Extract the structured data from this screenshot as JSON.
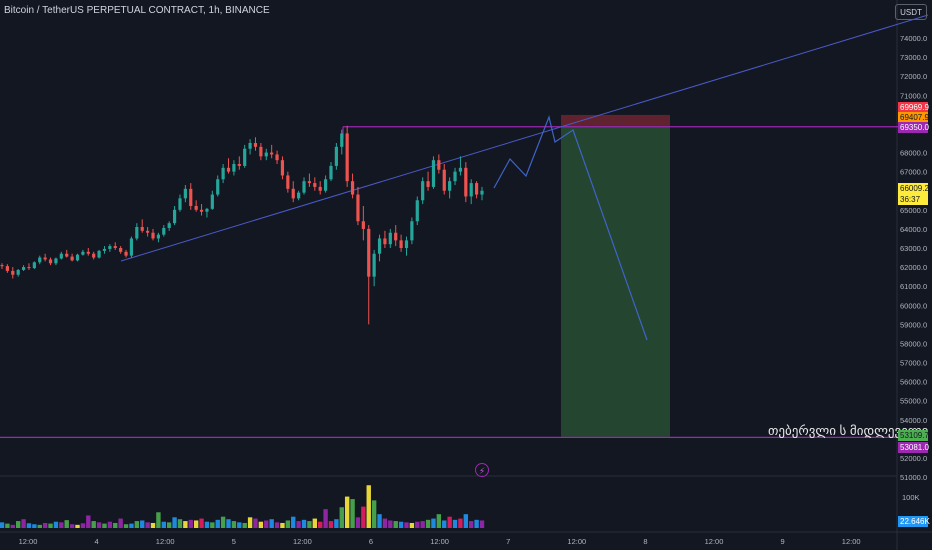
{
  "header": {
    "title": "Bitcoin / TetherUS PERPETUAL CONTRACT, 1h, BINANCE",
    "currency": "USDT"
  },
  "watermark": "თებერვლი ს მიდლეველი",
  "price_axis": [
    "74000.0",
    "73000.0",
    "72000.0",
    "71000.0",
    "68000.0",
    "67000.0",
    "65000.0",
    "64000.0",
    "63000.0",
    "62000.0",
    "61000.0",
    "60000.0",
    "59000.0",
    "58000.0",
    "57000.0",
    "56000.0",
    "55000.0",
    "54000.0",
    "52000.0",
    "51000.0"
  ],
  "price_tags": [
    {
      "label": "69969.9",
      "bg": "#f23645",
      "fg": "#ffffff"
    },
    {
      "label": "69407.9",
      "bg": "#ff9800",
      "fg": "#131722"
    },
    {
      "label": "69350.0",
      "bg": "#9c27b0",
      "fg": "#ffffff"
    },
    {
      "label": "66009.2",
      "bg": "#ffeb3b",
      "fg": "#131722"
    },
    {
      "label": "36:37",
      "bg": "#ffeb3b",
      "fg": "#131722"
    },
    {
      "label": "53109.7",
      "bg": "#4caf50",
      "fg": "#131722"
    },
    {
      "label": "53081.0",
      "bg": "#9c27b0",
      "fg": "#ffffff"
    }
  ],
  "volume_axis": {
    "label": "100K",
    "current": "22.646K",
    "current_bg": "#2196f3"
  },
  "time_axis": [
    "12:00",
    "4",
    "12:00",
    "5",
    "12:00",
    "6",
    "12:00",
    "7",
    "12:00",
    "8",
    "12:00",
    "9",
    "12:00"
  ],
  "colors": {
    "up": "#26a69a",
    "down": "#ef5350",
    "purple": "#9c27b0",
    "trend": "#4a5ac8",
    "stop": "#f23645",
    "target": "#4caf50"
  },
  "chart_data": {
    "type": "candlestick",
    "ylim": [
      51000,
      75500
    ],
    "candles": [
      [
        62100,
        62200,
        61900,
        62050
      ],
      [
        62050,
        62150,
        61700,
        61800
      ],
      [
        61800,
        62000,
        61400,
        61600
      ],
      [
        61600,
        61900,
        61500,
        61850
      ],
      [
        61850,
        62100,
        61800,
        62000
      ],
      [
        62000,
        62200,
        61850,
        61950
      ],
      [
        61950,
        62300,
        61900,
        62250
      ],
      [
        62250,
        62600,
        62150,
        62500
      ],
      [
        62500,
        62700,
        62300,
        62400
      ],
      [
        62400,
        62500,
        62100,
        62200
      ],
      [
        62200,
        62500,
        62100,
        62450
      ],
      [
        62450,
        62800,
        62400,
        62700
      ],
      [
        62700,
        62900,
        62500,
        62550
      ],
      [
        62550,
        62700,
        62300,
        62350
      ],
      [
        62350,
        62700,
        62300,
        62650
      ],
      [
        62650,
        62900,
        62600,
        62800
      ],
      [
        62800,
        63000,
        62600,
        62700
      ],
      [
        62700,
        62800,
        62400,
        62500
      ],
      [
        62500,
        62900,
        62450,
        62850
      ],
      [
        62850,
        63100,
        62700,
        62950
      ],
      [
        62950,
        63200,
        62800,
        63100
      ],
      [
        63100,
        63300,
        62900,
        63000
      ],
      [
        63000,
        63100,
        62700,
        62800
      ],
      [
        62800,
        62900,
        62500,
        62600
      ],
      [
        62600,
        63600,
        62500,
        63500
      ],
      [
        63500,
        64300,
        63400,
        64100
      ],
      [
        64100,
        64500,
        63800,
        63900
      ],
      [
        63900,
        64100,
        63600,
        63800
      ],
      [
        63800,
        64000,
        63400,
        63500
      ],
      [
        63500,
        63800,
        63300,
        63700
      ],
      [
        63700,
        64200,
        63600,
        64050
      ],
      [
        64050,
        64400,
        63900,
        64300
      ],
      [
        64300,
        65200,
        64200,
        65000
      ],
      [
        65000,
        65800,
        64900,
        65600
      ],
      [
        65600,
        66300,
        65400,
        66100
      ],
      [
        66100,
        66400,
        65000,
        65200
      ],
      [
        65200,
        65500,
        64900,
        65000
      ],
      [
        65000,
        65300,
        64700,
        64900
      ],
      [
        64900,
        65100,
        64600,
        65050
      ],
      [
        65050,
        66000,
        65000,
        65800
      ],
      [
        65800,
        66800,
        65700,
        66600
      ],
      [
        66600,
        67400,
        66400,
        67200
      ],
      [
        67200,
        67700,
        66900,
        67000
      ],
      [
        67000,
        67600,
        66800,
        67400
      ],
      [
        67400,
        67800,
        67100,
        67300
      ],
      [
        67300,
        68400,
        67200,
        68200
      ],
      [
        68200,
        68700,
        67900,
        68500
      ],
      [
        68500,
        68800,
        68100,
        68300
      ],
      [
        68300,
        68500,
        67600,
        67800
      ],
      [
        67800,
        68200,
        67600,
        68000
      ],
      [
        68000,
        68400,
        67700,
        67900
      ],
      [
        67900,
        68100,
        67400,
        67600
      ],
      [
        67600,
        67800,
        66600,
        66800
      ],
      [
        66800,
        67000,
        65900,
        66100
      ],
      [
        66100,
        66500,
        65400,
        65600
      ],
      [
        65600,
        66000,
        65500,
        65900
      ],
      [
        65900,
        66700,
        65800,
        66500
      ],
      [
        66500,
        66900,
        66200,
        66400
      ],
      [
        66400,
        66700,
        66000,
        66200
      ],
      [
        66200,
        66500,
        65800,
        66000
      ],
      [
        66000,
        66800,
        65900,
        66600
      ],
      [
        66600,
        67500,
        66500,
        67300
      ],
      [
        67300,
        68500,
        67100,
        68300
      ],
      [
        68300,
        69200,
        67900,
        69000
      ],
      [
        69000,
        69400,
        66200,
        66500
      ],
      [
        66500,
        66900,
        65600,
        65800
      ],
      [
        65800,
        66200,
        64200,
        64400
      ],
      [
        64400,
        65200,
        63400,
        64000
      ],
      [
        64000,
        64200,
        59000,
        61500
      ],
      [
        61500,
        62900,
        61000,
        62700
      ],
      [
        62700,
        63700,
        62300,
        63500
      ],
      [
        63500,
        63900,
        63000,
        63200
      ],
      [
        63200,
        64000,
        63000,
        63800
      ],
      [
        63800,
        64200,
        63100,
        63400
      ],
      [
        63400,
        63700,
        62800,
        63000
      ],
      [
        63000,
        63600,
        62600,
        63400
      ],
      [
        63400,
        64600,
        63200,
        64400
      ],
      [
        64400,
        65700,
        64200,
        65500
      ],
      [
        65500,
        66700,
        65300,
        66500
      ],
      [
        66500,
        67000,
        66000,
        66200
      ],
      [
        66200,
        67800,
        66100,
        67600
      ],
      [
        67600,
        67900,
        66900,
        67100
      ],
      [
        67100,
        67400,
        65800,
        66000
      ],
      [
        66000,
        66700,
        65600,
        66500
      ],
      [
        66500,
        67200,
        66300,
        67000
      ],
      [
        67000,
        67800,
        66800,
        67200
      ],
      [
        67200,
        67500,
        65400,
        65700
      ],
      [
        65700,
        66600,
        65300,
        66400
      ],
      [
        66400,
        66500,
        65600,
        65800
      ],
      [
        65800,
        66200,
        65500,
        66000
      ]
    ],
    "volumes": [
      18,
      14,
      10,
      22,
      28,
      15,
      12,
      10,
      16,
      14,
      20,
      18,
      25,
      12,
      10,
      15,
      40,
      22,
      18,
      14,
      20,
      16,
      30,
      12,
      14,
      22,
      24,
      18,
      16,
      50,
      20,
      18,
      34,
      28,
      22,
      26,
      24,
      30,
      20,
      18,
      26,
      36,
      28,
      22,
      18,
      16,
      34,
      30,
      20,
      24,
      28,
      18,
      16,
      24,
      36,
      22,
      26,
      22,
      30,
      20,
      60,
      22,
      28,
      66,
      100,
      92,
      34,
      68,
      136,
      88,
      44,
      30,
      24,
      22,
      20,
      18,
      16,
      20,
      22,
      26,
      30,
      44,
      24,
      36,
      26,
      30,
      44,
      22,
      26,
      24
    ],
    "projection": [
      [
        494,
        188
      ],
      [
        510,
        159
      ],
      [
        526,
        176
      ],
      [
        549,
        117
      ],
      [
        555,
        142
      ],
      [
        573,
        130
      ],
      [
        647,
        340
      ]
    ],
    "trendline": [
      [
        121,
        261
      ],
      [
        928,
        15
      ]
    ],
    "resistance": {
      "x1": 343,
      "x2": 898,
      "price": 69350
    },
    "support": {
      "x1": 0,
      "x2": 898,
      "price": 53081
    },
    "position": {
      "x1": 561,
      "x2": 670,
      "stop_top": 69969.9,
      "entry": 69407.9,
      "target": 53109.7
    }
  }
}
